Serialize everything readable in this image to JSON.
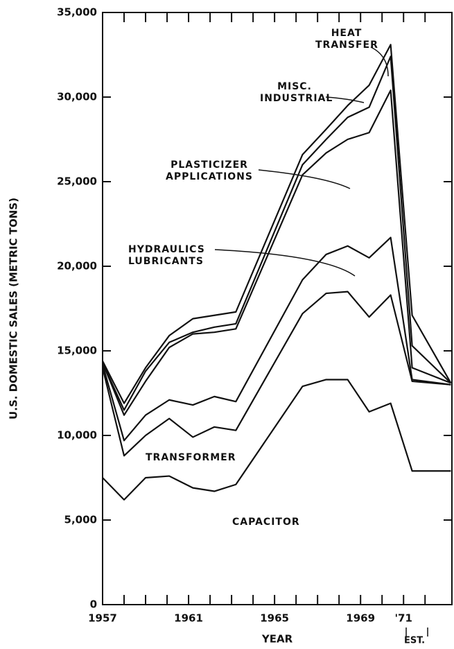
{
  "chart_data": {
    "type": "stacked-line",
    "xlabel": "YEAR",
    "ylabel": "U.S. DOMESTIC SALES (METRIC TONS)",
    "note": "EST.",
    "x": [
      1957,
      1958,
      1959,
      1960.1,
      1961.2,
      1962.2,
      1963.2,
      1966.3,
      1967.4,
      1968.4,
      1969.4,
      1970.4,
      1971.4,
      1973.2
    ],
    "xlim": [
      1957,
      1973.25
    ],
    "xticks": [
      1957,
      1961,
      1965,
      1969,
      {
        "value": 1971,
        "label": "'71"
      }
    ],
    "xminorticks": [
      1958,
      1959,
      1960,
      1962,
      1963,
      1964,
      1966,
      1967,
      1968,
      1970,
      1972
    ],
    "ylim": [
      0,
      35000
    ],
    "yticks": [
      0,
      {
        "value": 5000,
        "label": "5,000"
      },
      {
        "value": 10000,
        "label": "10,000"
      },
      {
        "value": 15000,
        "label": "15,000"
      },
      {
        "value": 20000,
        "label": "20,000"
      },
      {
        "value": 25000,
        "label": "25,000"
      },
      {
        "value": 30000,
        "label": "30,000"
      },
      {
        "value": 35000,
        "label": "35,000"
      }
    ],
    "series": [
      {
        "name": "CAPACITOR",
        "color": "#111111",
        "values": [
          7500,
          6200,
          7500,
          7600,
          6900,
          6700,
          7100,
          12900,
          13300,
          13300,
          11400,
          11900,
          7900,
          7900
        ]
      },
      {
        "name": "TRANSFORMER",
        "color": "#111111",
        "values": [
          6500,
          2600,
          2500,
          3400,
          3000,
          3800,
          3200,
          4300,
          5100,
          5200,
          5600,
          6400,
          5300,
          5100
        ]
      },
      {
        "name": "HYDRAULICS LUBRICANTS",
        "color": "#111111",
        "values": [
          200,
          900,
          1200,
          1100,
          1900,
          1800,
          1700,
          2000,
          2300,
          2700,
          3500,
          3400,
          100,
          0
        ]
      },
      {
        "name": "PLASTICIZER APPLICATIONS",
        "color": "#111111",
        "values": [
          100,
          1500,
          2000,
          3100,
          4200,
          3800,
          4300,
          6200,
          6000,
          6300,
          7400,
          8700,
          700,
          100
        ]
      },
      {
        "name": "MISC. INDUSTRIAL",
        "color": "#111111",
        "values": [
          0,
          300,
          600,
          300,
          100,
          300,
          300,
          600,
          800,
          1300,
          1500,
          2000,
          1300,
          0
        ]
      },
      {
        "name": "HEAT TRANSFER",
        "color": "#111111",
        "values": [
          100,
          400,
          200,
          400,
          800,
          700,
          700,
          600,
          600,
          700,
          1300,
          700,
          1800,
          0
        ]
      }
    ]
  }
}
